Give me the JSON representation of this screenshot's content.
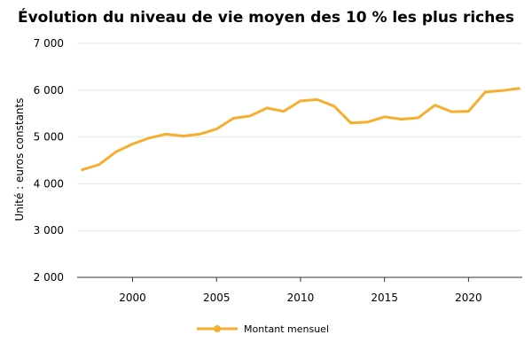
{
  "chart_data": {
    "type": "line",
    "title": "Évolution du niveau de vie moyen des 10 % les plus riches",
    "xlabel": "",
    "ylabel": "Unité : euros constants",
    "xlim": [
      1996.7,
      2023.2
    ],
    "ylim": [
      2000,
      7000
    ],
    "x_ticks": [
      2000,
      2005,
      2010,
      2015,
      2020
    ],
    "x_tick_labels": [
      "2000",
      "2005",
      "2010",
      "2015",
      "2020"
    ],
    "y_ticks": [
      2000,
      3000,
      4000,
      5000,
      6000,
      7000
    ],
    "y_tick_labels": [
      "2 000",
      "3 000",
      "4 000",
      "5 000",
      "6 000",
      "7 000"
    ],
    "grid": "horizontal",
    "legend_position": "bottom-center",
    "series": [
      {
        "name": "Montant mensuel",
        "color": "#f5ae2d",
        "x": [
          1997,
          1998,
          1999,
          2000,
          2001,
          2002,
          2003,
          2004,
          2005,
          2006,
          2007,
          2008,
          2009,
          2010,
          2011,
          2012,
          2013,
          2014,
          2015,
          2016,
          2017,
          2018,
          2019,
          2020,
          2021,
          2022,
          2023
        ],
        "y": [
          4300,
          4410,
          4680,
          4850,
          4980,
          5060,
          5020,
          5060,
          5170,
          5400,
          5450,
          5620,
          5550,
          5770,
          5800,
          5660,
          5300,
          5320,
          5430,
          5380,
          5410,
          5680,
          5540,
          5550,
          5960,
          5990,
          6040
        ]
      }
    ]
  }
}
